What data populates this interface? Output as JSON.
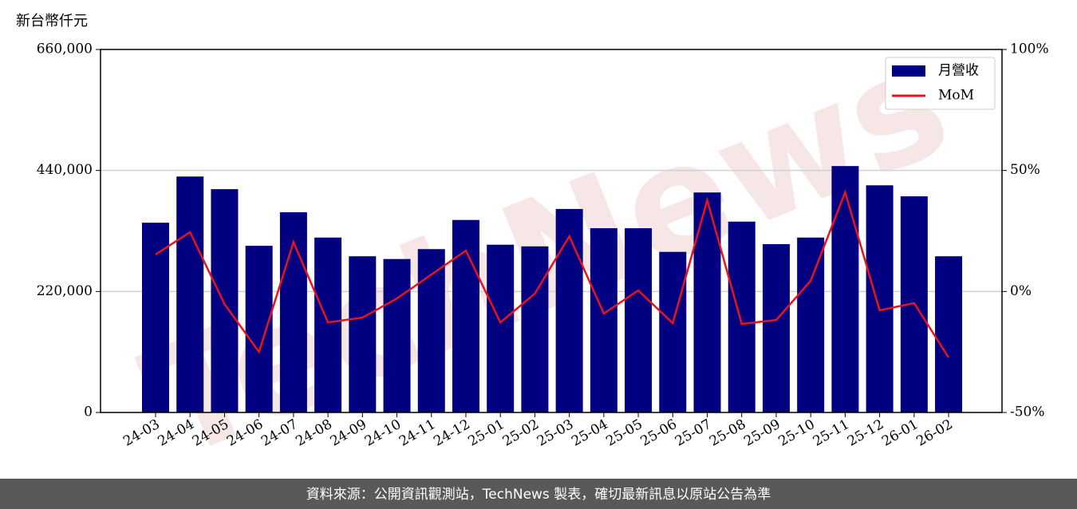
{
  "chart_data": {
    "type": "bar-line",
    "y_label": "新台幣仟元",
    "watermark": "TechNews",
    "footer": "資料來源：公開資訊觀測站，TechNews 製表，確切最新訊息以原站公告為準",
    "categories": [
      "24-03",
      "24-04",
      "24-05",
      "24-06",
      "24-07",
      "24-08",
      "24-09",
      "24-10",
      "24-11",
      "24-12",
      "25-01",
      "25-02",
      "25-03",
      "25-04",
      "25-05",
      "25-06",
      "25-07",
      "25-08",
      "25-09",
      "25-10",
      "25-11",
      "25-12",
      "26-01",
      "26-02"
    ],
    "series": [
      {
        "name": "月營收",
        "type": "bar",
        "color": "#000080",
        "values": [
          345000,
          429000,
          406000,
          303000,
          364000,
          318000,
          284000,
          279000,
          297000,
          350000,
          305000,
          302000,
          370000,
          335000,
          335000,
          292000,
          400000,
          347000,
          306000,
          318000,
          448000,
          413000,
          393000,
          284000
        ]
      },
      {
        "name": "MoM",
        "type": "line",
        "axis": "y2",
        "color": "#e8141b",
        "values": [
          15.3,
          24.5,
          -5.2,
          -25,
          20.4,
          -12.8,
          -10.8,
          -2.9,
          7,
          16.9,
          -12.8,
          -0.9,
          22.8,
          -9.1,
          0.4,
          -13.1,
          37.7,
          -13.4,
          -11.8,
          4.4,
          41,
          -7.8,
          -4.8,
          -27.3
        ]
      }
    ],
    "ylim": [
      0,
      660000
    ],
    "yticks": [
      0,
      {
        "value": 220000,
        "label": "220,000"
      },
      {
        "value": 440000,
        "label": "440,000"
      },
      {
        "value": 660000,
        "label": "660,000"
      }
    ],
    "y2lim": [
      -50,
      100
    ],
    "y2ticks": [
      {
        "value": -50,
        "label": "-50%"
      },
      {
        "value": 0,
        "label": "0%"
      },
      {
        "value": 50,
        "label": "50%"
      },
      {
        "value": 100,
        "label": "100%"
      }
    ],
    "grid": true,
    "legend": "upper right"
  }
}
